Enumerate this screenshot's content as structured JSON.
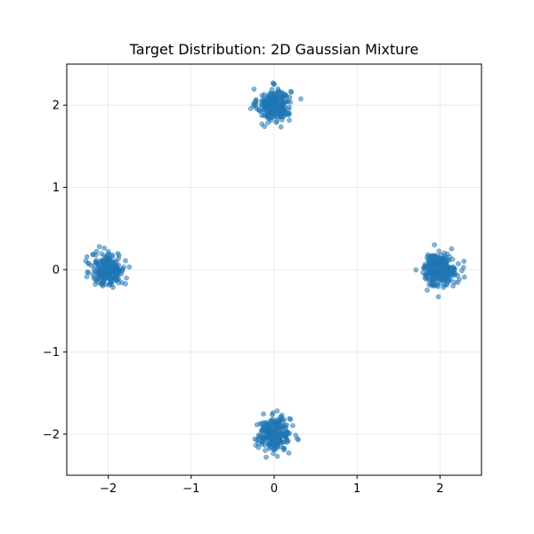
{
  "chart_data": {
    "type": "scatter",
    "title": "Target Distribution: 2D Gaussian Mixture",
    "xlabel": "",
    "ylabel": "",
    "xlim": [
      -2.5,
      2.5
    ],
    "ylim": [
      -2.5,
      2.5
    ],
    "x_ticks": [
      -2,
      -1,
      0,
      1,
      2
    ],
    "y_ticks": [
      -2,
      -1,
      0,
      1,
      2
    ],
    "x_tick_labels": [
      "−2",
      "−1",
      "0",
      "1",
      "2"
    ],
    "y_tick_labels": [
      "−2",
      "−1",
      "0",
      "1",
      "2"
    ],
    "grid": true,
    "point_color": "#1f77b4",
    "point_opacity": 0.55,
    "clusters": [
      {
        "center": [
          0,
          2
        ],
        "std": 0.1,
        "count": 250
      },
      {
        "center": [
          -2,
          0
        ],
        "std": 0.1,
        "count": 250
      },
      {
        "center": [
          2,
          0
        ],
        "std": 0.1,
        "count": 250
      },
      {
        "center": [
          0,
          -2
        ],
        "std": 0.1,
        "count": 250
      }
    ]
  }
}
